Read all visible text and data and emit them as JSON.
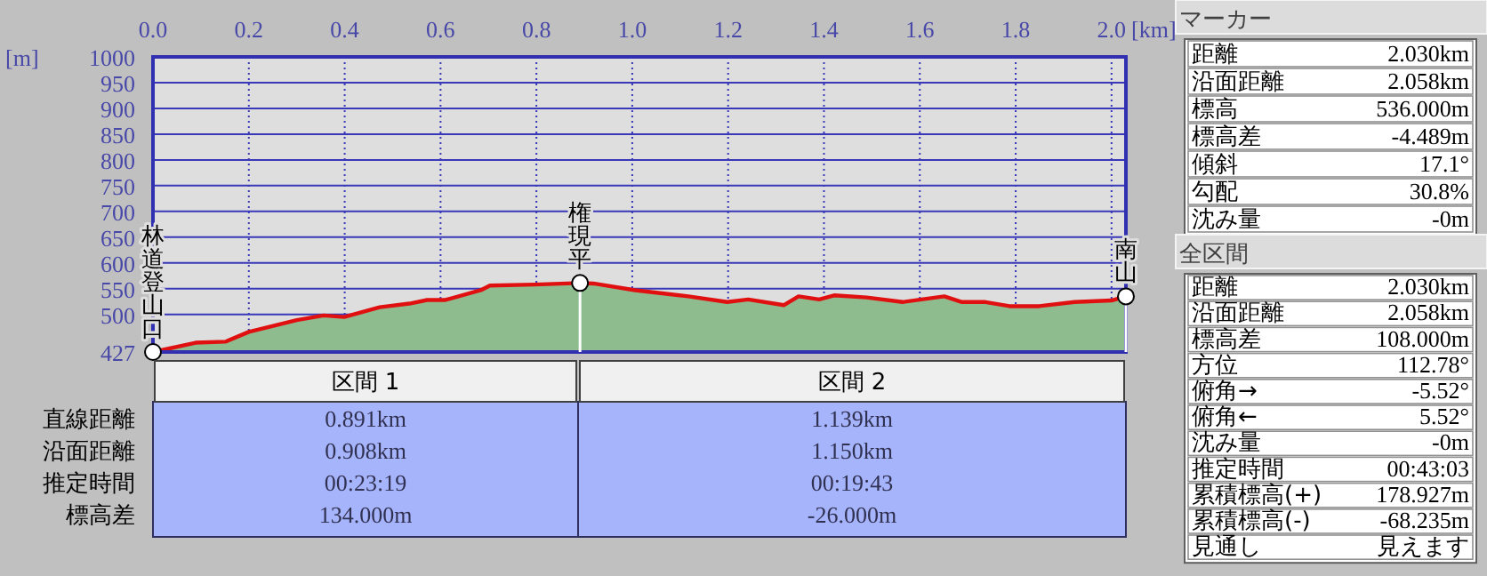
{
  "chart_data": [
    {
      "type": "area",
      "xlabel": "[km]",
      "ylabel": "[m]",
      "color": "#8fbc8f",
      "grid": true,
      "x": [
        0,
        0.089,
        0.151,
        0.2,
        0.3,
        0.356,
        0.399,
        0.473,
        0.535,
        0.572,
        0.61,
        0.684,
        0.703,
        0.796,
        0.891,
        0.919,
        1.006,
        1.117,
        1.198,
        1.242,
        1.316,
        1.347,
        1.39,
        1.421,
        1.489,
        1.564,
        1.651,
        1.688,
        1.737,
        1.787,
        1.849,
        1.923,
        2.0,
        2.03
      ],
      "values": [
        427,
        445,
        447,
        466,
        489,
        498,
        495,
        514,
        521,
        528,
        528,
        547,
        556,
        558,
        561,
        560,
        547,
        535,
        524,
        529,
        518,
        535,
        529,
        537,
        533,
        524,
        535,
        524,
        524,
        516,
        516,
        524,
        527,
        535
      ],
      "xlim": [
        0,
        2.03
      ],
      "ylim": [
        427,
        1000
      ],
      "xticks": [
        {
          "value": 0,
          "label": "0.0"
        },
        0.2,
        0.4,
        0.6,
        0.8,
        {
          "value": 1,
          "label": "1.0"
        },
        1.2,
        1.4,
        1.6,
        1.8,
        {
          "value": 2,
          "label": "2.0"
        }
      ],
      "yticks": [
        427,
        500,
        550,
        600,
        650,
        700,
        750,
        800,
        850,
        900,
        950,
        1000
      ],
      "annotations": [
        {
          "text": "林道登山口",
          "x": 0,
          "y": 427
        },
        {
          "text": "権現平",
          "x": 0.891,
          "y": 561
        },
        {
          "text": "南山",
          "x": 2.03,
          "y": 535
        }
      ]
    },
    {
      "type": "other",
      "categories": [
        "区間 1",
        "区間 2"
      ],
      "y_categories": [
        "直線距離",
        "沿面距離",
        "推定時間",
        "標高差"
      ],
      "cell_labels": [
        [
          "0.891km",
          "1.139km"
        ],
        [
          "0.908km",
          "1.150km"
        ],
        [
          "00:23:19",
          "00:19:43"
        ],
        [
          "134.000m",
          "-26.000m"
        ]
      ]
    },
    {
      "type": "other",
      "title": "マーカー",
      "y_categories": [
        "距離",
        "沿面距離",
        "標高",
        "標高差",
        "傾斜",
        "勾配",
        "沈み量"
      ],
      "cell_labels": [
        [
          "2.030km"
        ],
        [
          "2.058km"
        ],
        [
          "536.000m"
        ],
        [
          "-4.489m"
        ],
        [
          "17.1°"
        ],
        [
          "30.8%"
        ],
        [
          "-0m"
        ]
      ]
    },
    {
      "type": "other",
      "title": "全区間",
      "y_categories": [
        "距離",
        "沿面距離",
        "標高差",
        "方位",
        "俯角→",
        "俯角←",
        "沈み量",
        "推定時間",
        "累積標高(+)",
        "累積標高(-)",
        "見通し"
      ],
      "cell_labels": [
        [
          "2.030km"
        ],
        [
          "2.058km"
        ],
        [
          "108.000m"
        ],
        [
          "112.78°"
        ],
        [
          "-5.52°"
        ],
        [
          "5.52°"
        ],
        [
          "-0m"
        ],
        [
          "00:43:03"
        ],
        [
          "178.927m"
        ],
        [
          "-68.235m"
        ],
        [
          "見えます"
        ]
      ]
    }
  ]
}
